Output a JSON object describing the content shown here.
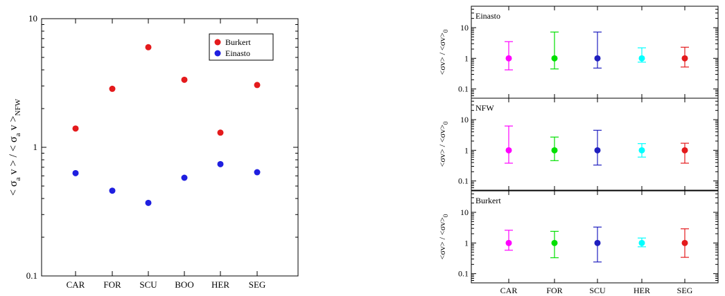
{
  "chart_data": [
    {
      "type": "scatter",
      "title": "",
      "ylabel": "< σ_a v > / < σ_a v >_NFW",
      "yscale": "log",
      "ylim": [
        0.1,
        10
      ],
      "yticklabels": [
        "0.1",
        "1",
        "10"
      ],
      "categories": [
        "CAR",
        "FOR",
        "SCU",
        "BOO",
        "HER",
        "SEG"
      ],
      "series": [
        {
          "name": "Burkert",
          "color": "#e41a1c",
          "values": [
            1.4,
            2.85,
            6.0,
            3.35,
            1.3,
            3.05
          ]
        },
        {
          "name": "Einasto",
          "color": "#1f1fe0",
          "values": [
            0.63,
            0.46,
            0.37,
            0.58,
            0.74,
            0.64
          ]
        }
      ],
      "legend": {
        "position": "top-right"
      }
    },
    {
      "type": "scatter",
      "subtype": "error-bar-panels",
      "ylabel": "<σv> / <σv>_0",
      "yscale": "log",
      "ylim": [
        0.05,
        50
      ],
      "yticklabels": [
        "0.1",
        "1",
        "10"
      ],
      "categories": [
        "CAR",
        "FOR",
        "SCU",
        "HER",
        "SEG"
      ],
      "colors": [
        "#ff00ff",
        "#00e000",
        "#1f1fbf",
        "#00ffff",
        "#e41a1c"
      ],
      "panels": [
        {
          "label": "Einasto",
          "values": [
            1,
            1,
            1,
            1,
            1
          ],
          "upper": [
            3.5,
            7.2,
            7.2,
            2.2,
            2.3
          ],
          "lower": [
            0.42,
            0.45,
            0.48,
            0.75,
            0.52
          ]
        },
        {
          "label": "NFW",
          "values": [
            1,
            1,
            1,
            1,
            1
          ],
          "upper": [
            6.2,
            2.7,
            4.5,
            1.65,
            1.7
          ],
          "lower": [
            0.38,
            0.46,
            0.33,
            0.6,
            0.38
          ]
        },
        {
          "label": "Burkert",
          "values": [
            1,
            1,
            1,
            1,
            1
          ],
          "upper": [
            2.6,
            2.4,
            3.3,
            1.45,
            2.9
          ],
          "lower": [
            0.58,
            0.33,
            0.24,
            0.75,
            0.34
          ]
        }
      ]
    }
  ]
}
